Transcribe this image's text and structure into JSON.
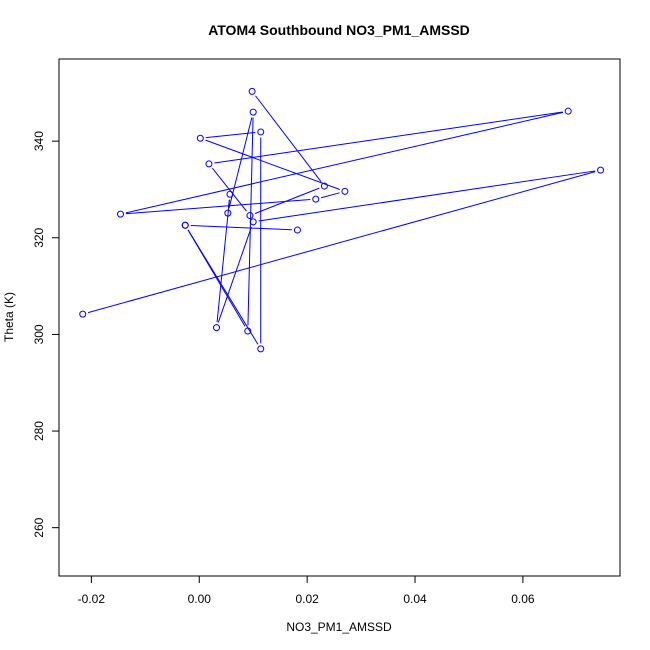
{
  "chart_data": {
    "type": "line",
    "title": "ATOM4 Southbound NO3_PM1_AMSSD",
    "xlabel": "NO3_PM1_AMSSD",
    "ylabel": "Theta (K)",
    "xlim": [
      -0.026,
      0.078
    ],
    "ylim": [
      250,
      357
    ],
    "x_ticks": [
      -0.02,
      0.0,
      0.02,
      0.04,
      0.06
    ],
    "x_tick_labels": [
      "-0.02",
      "0.00",
      "0.02",
      "0.04",
      "0.06"
    ],
    "y_ticks": [
      260,
      280,
      300,
      320,
      340
    ],
    "y_tick_labels": [
      "260",
      "280",
      "300",
      "320",
      "340"
    ],
    "grid": false,
    "series": [
      {
        "color": "#0000ff",
        "marker": "open-circle",
        "points": [
          {
            "x": 0.0098,
            "y": 350.3
          },
          {
            "x": 0.0232,
            "y": 330.7
          },
          {
            "x": 0.0094,
            "y": 324.6
          },
          {
            "x": 0.0018,
            "y": 335.3
          },
          {
            "x": 0.0684,
            "y": 346.2
          },
          {
            "x": -0.0146,
            "y": 324.9
          },
          {
            "x": 0.0216,
            "y": 328.0
          },
          {
            "x": 0.027,
            "y": 329.6
          },
          {
            "x": 0.0002,
            "y": 340.6
          },
          {
            "x": 0.0114,
            "y": 341.9
          },
          {
            "x": 0.0114,
            "y": 297.0
          },
          {
            "x": -0.0026,
            "y": 322.6
          },
          {
            "x": 0.009,
            "y": 300.7
          },
          {
            "x": 0.01,
            "y": 346.0
          },
          {
            "x": 0.0053,
            "y": 325.1
          },
          {
            "x": 0.0057,
            "y": 329.0
          },
          {
            "x": 0.0032,
            "y": 301.4
          },
          {
            "x": 0.01,
            "y": 323.3
          },
          {
            "x": 0.0744,
            "y": 334.0
          },
          {
            "x": -0.0216,
            "y": 304.2
          }
        ]
      },
      {
        "color": "#0000ff",
        "marker": "open-circle",
        "points": [
          {
            "x": -0.0026,
            "y": 322.6
          },
          {
            "x": 0.0182,
            "y": 321.6
          }
        ]
      }
    ]
  }
}
